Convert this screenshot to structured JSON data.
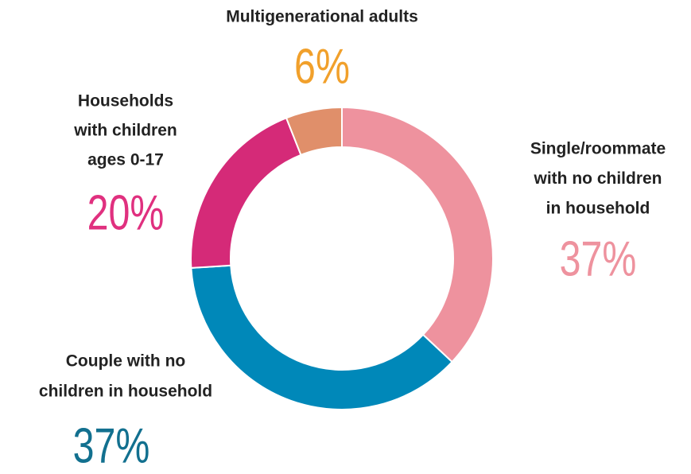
{
  "chart_data": {
    "type": "donut",
    "categories": [
      [
        "Single/roommate",
        "with no children",
        "in household"
      ],
      [
        "Couple with no",
        "children in household"
      ],
      [
        "Households",
        "with children",
        "ages 0-17"
      ],
      [
        "Multigenerational adults"
      ]
    ],
    "values": [
      37,
      37,
      20,
      6
    ],
    "value_labels": [
      "37%",
      "37%",
      "20%",
      "6%"
    ],
    "colors": [
      "#ee929e",
      "#0088b9",
      "#d52a78",
      "#e08f6a"
    ],
    "label_colors": [
      "#ee929e",
      "#12708f",
      "#e0307f",
      "#f1a02b"
    ]
  }
}
